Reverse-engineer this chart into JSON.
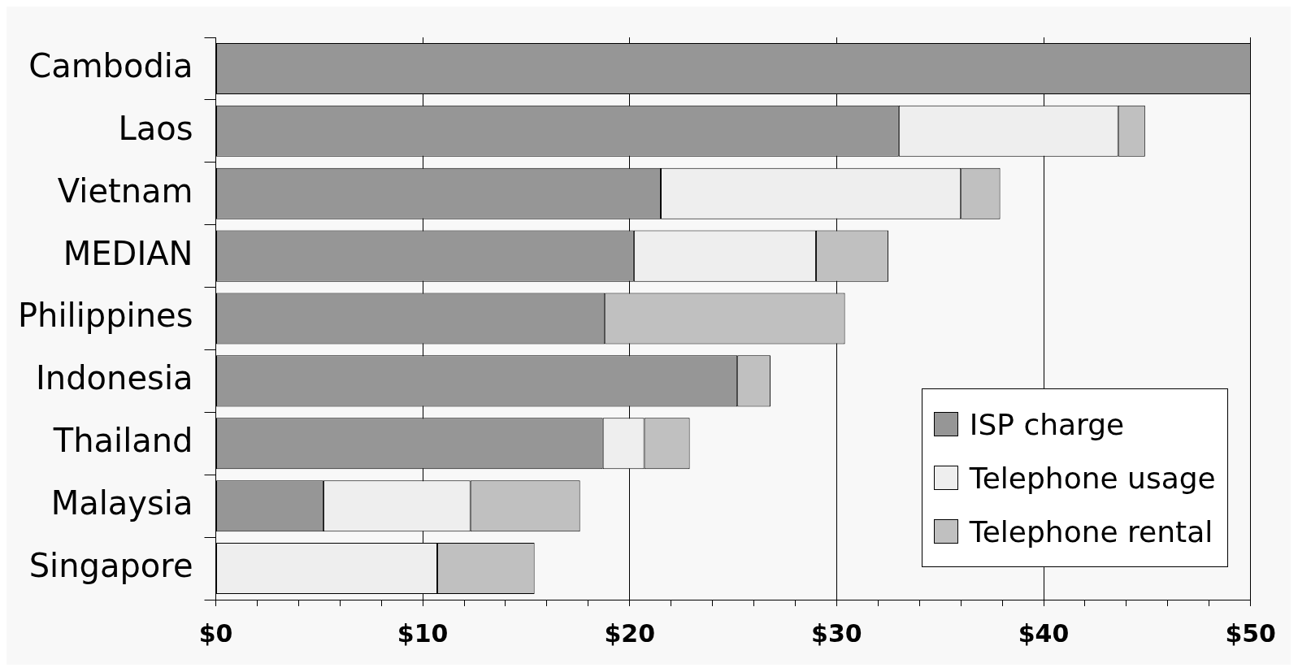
{
  "chart_data": {
    "type": "bar",
    "orientation": "horizontal",
    "stacked": true,
    "categories": [
      "Cambodia",
      "Laos",
      "Vietnam",
      "MEDIAN",
      "Philippines",
      "Indonesia",
      "Thailand",
      "Malaysia",
      "Singapore"
    ],
    "series": [
      {
        "name": "ISP charge",
        "color": "#969696",
        "values": [
          50,
          33.0,
          21.5,
          20.2,
          18.8,
          25.2,
          18.7,
          5.2,
          null
        ]
      },
      {
        "name": "Telephone usage",
        "color": "#eeeeee",
        "values": [
          null,
          10.6,
          14.5,
          8.8,
          null,
          null,
          2.0,
          7.1,
          10.7
        ]
      },
      {
        "name": "Telephone rental",
        "color": "#c0c0c0",
        "values": [
          null,
          1.3,
          1.9,
          3.5,
          11.6,
          1.6,
          2.2,
          5.3,
          4.7
        ]
      }
    ],
    "xlim": [
      0,
      50
    ],
    "xticks": [
      {
        "value": 0,
        "label": "$0"
      },
      {
        "value": 2,
        "label": null
      },
      {
        "value": 4,
        "label": null
      },
      {
        "value": 6,
        "label": null
      },
      {
        "value": 8,
        "label": null
      },
      {
        "value": 10,
        "label": "$10"
      },
      {
        "value": 12,
        "label": null
      },
      {
        "value": 14,
        "label": null
      },
      {
        "value": 16,
        "label": null
      },
      {
        "value": 18,
        "label": null
      },
      {
        "value": 20,
        "label": "$20"
      },
      {
        "value": 22,
        "label": null
      },
      {
        "value": 24,
        "label": null
      },
      {
        "value": 26,
        "label": null
      },
      {
        "value": 28,
        "label": null
      },
      {
        "value": 30,
        "label": "$30"
      },
      {
        "value": 32,
        "label": null
      },
      {
        "value": 34,
        "label": null
      },
      {
        "value": 36,
        "label": null
      },
      {
        "value": 38,
        "label": null
      },
      {
        "value": 40,
        "label": "$40"
      },
      {
        "value": 42,
        "label": null
      },
      {
        "value": 44,
        "label": null
      },
      {
        "value": 46,
        "label": null
      },
      {
        "value": 48,
        "label": null
      },
      {
        "value": 50,
        "label": "$50"
      }
    ],
    "grid": "x",
    "legend": "bottom right"
  }
}
